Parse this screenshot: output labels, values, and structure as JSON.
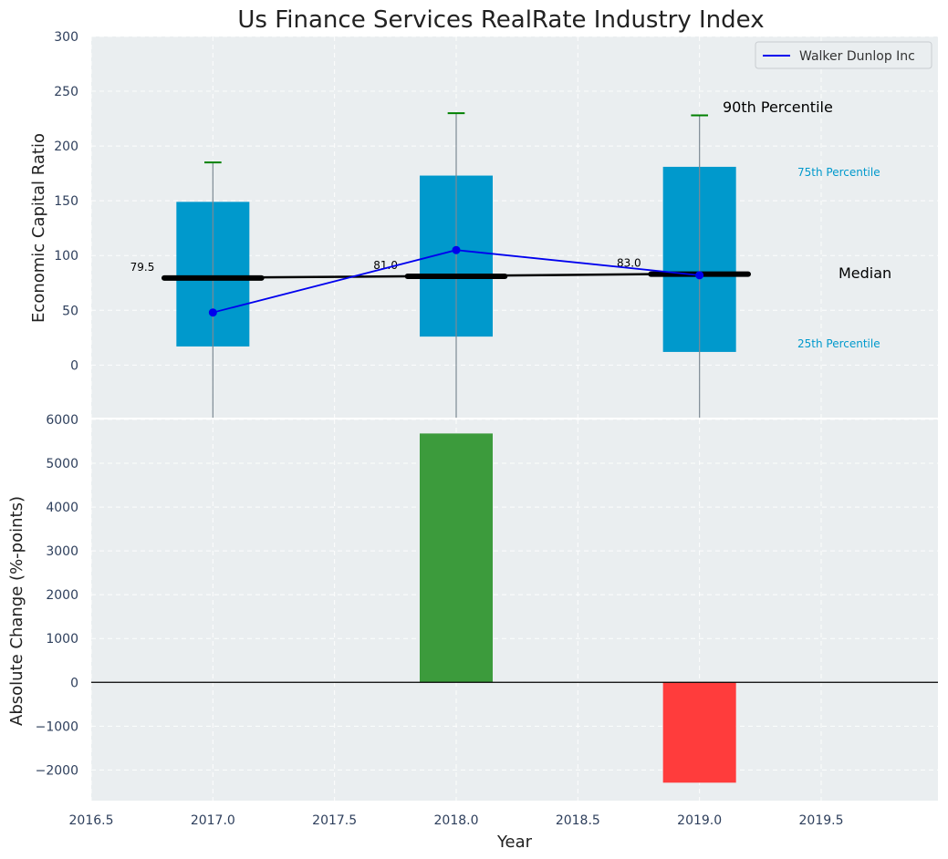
{
  "chart_data": [
    {
      "type": "box",
      "title": "Us Finance Services RealRate Industry Index",
      "ylabel": "Economic Capital Ratio",
      "xlim": [
        2016.5,
        2019.98
      ],
      "ylim": [
        -48,
        300
      ],
      "yticks": [
        0,
        50,
        100,
        150,
        200,
        250,
        300
      ],
      "ytick_labels": [
        "0",
        "50",
        "100",
        "150",
        "200",
        "250",
        "300"
      ],
      "x": [
        2017,
        2018,
        2019
      ],
      "p10": [
        -55,
        -55,
        -55
      ],
      "p25": [
        17,
        26,
        12
      ],
      "median": [
        79.5,
        81.0,
        83.0
      ],
      "median_labels": [
        "79.5",
        "81.0",
        "83.0"
      ],
      "p75": [
        149,
        173,
        181
      ],
      "p90": [
        185,
        230,
        228
      ],
      "series": [
        {
          "name": "Walker Dunlop Inc",
          "x": [
            2017,
            2018,
            2019
          ],
          "values": [
            48,
            105,
            82
          ]
        }
      ],
      "legend": {
        "label": "Walker Dunlop Inc",
        "placement": "top-right"
      },
      "annotations": {
        "p90": "90th Percentile",
        "p75": "75th Percentile",
        "median": "Median",
        "p25": "25th Percentile"
      },
      "colors": {
        "box": "#0099cc",
        "line": "#0000ee",
        "median": "#000000",
        "whisker_cap": "#008000",
        "background": "#eaeef0"
      }
    },
    {
      "type": "bar",
      "ylabel": "Absolute Change (%-points)",
      "xlabel": "Year",
      "xlim": [
        2016.5,
        2019.98
      ],
      "ylim": [
        -2700,
        6000
      ],
      "yticks": [
        -2000,
        -1000,
        0,
        1000,
        2000,
        3000,
        4000,
        5000,
        6000
      ],
      "ytick_labels": [
        "−2000",
        "−1000",
        "0",
        "1000",
        "2000",
        "3000",
        "4000",
        "5000",
        "6000"
      ],
      "xticks": [
        2016.5,
        2017.0,
        2017.5,
        2018.0,
        2018.5,
        2019.0,
        2019.5
      ],
      "xtick_labels": [
        "2016.5",
        "2017.0",
        "2017.5",
        "2018.0",
        "2018.5",
        "2019.0",
        "2019.5"
      ],
      "x": [
        2018,
        2019
      ],
      "values": [
        5680,
        -2290
      ],
      "colors": {
        "positive": "#3c9b3c",
        "negative": "#ff3c3c",
        "background": "#eaeef0"
      }
    }
  ]
}
